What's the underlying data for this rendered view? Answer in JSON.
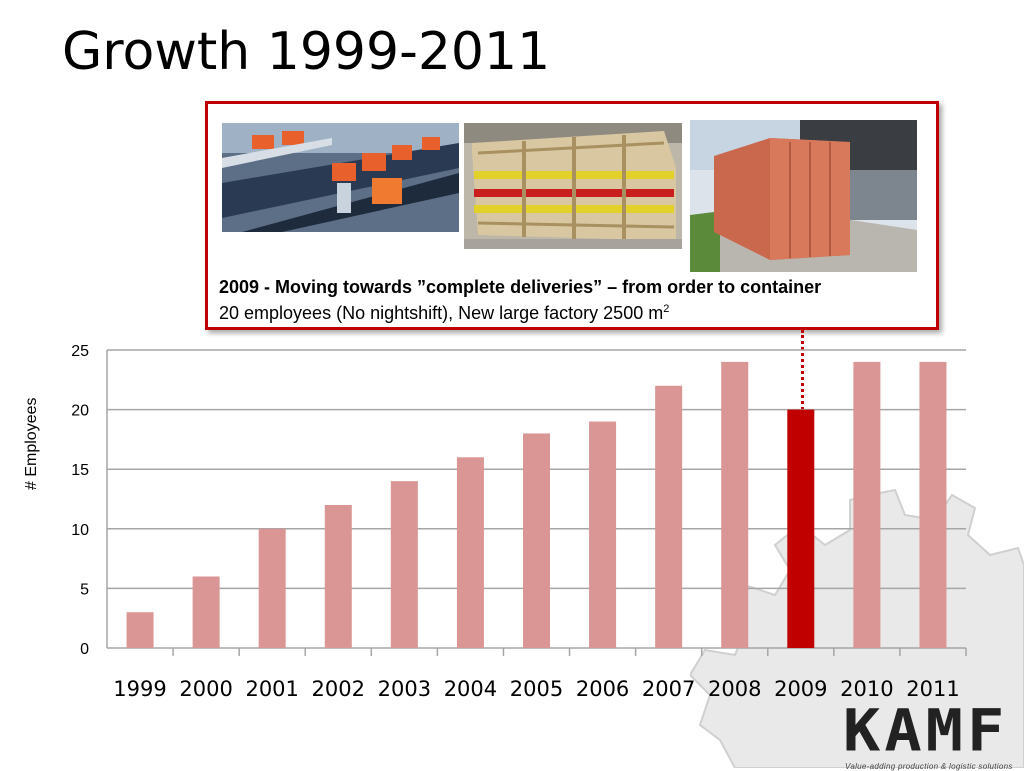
{
  "slide": {
    "title": "Growth 1999-2011"
  },
  "callout": {
    "headline": "2009 - Moving towards ”complete deliveries” – from order to container",
    "body_text": "20 employees (No nightshift), New large factory 2500 m",
    "body_superscript": "2"
  },
  "logo": {
    "name": "KAMF",
    "tagline": "Value-adding production & logistic solutions"
  },
  "colors": {
    "bar": "#d99694",
    "highlight": "#c00000",
    "grid": "#a6a6a6"
  },
  "chart_data": {
    "type": "bar",
    "ylabel": "# Employees",
    "xlabel": "",
    "title": "",
    "ylim": [
      0,
      25
    ],
    "yticks": [
      0,
      5,
      10,
      15,
      20,
      25
    ],
    "grid": true,
    "categories": [
      "1999",
      "2000",
      "2001",
      "2002",
      "2003",
      "2004",
      "2005",
      "2006",
      "2007",
      "2008",
      "2009",
      "2010",
      "2011"
    ],
    "values": [
      3,
      6,
      10,
      12,
      14,
      16,
      18,
      19,
      22,
      24,
      20,
      24,
      24
    ],
    "highlight_category": "2009"
  }
}
